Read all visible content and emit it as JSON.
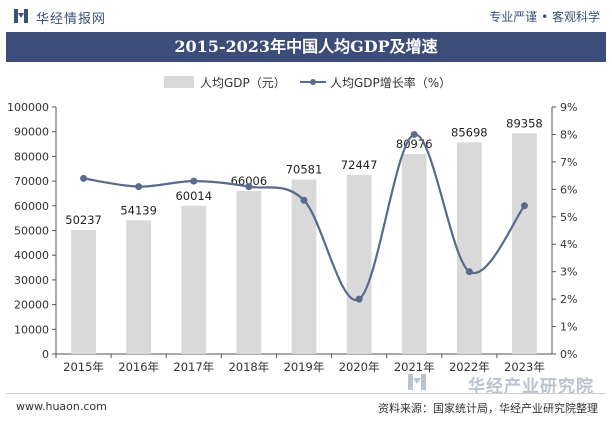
{
  "header": {
    "brand": "华经情报网",
    "tagline": "专业严谨 • 客观科学"
  },
  "chart_data": {
    "type": "bar",
    "title": "2015-2023年中国人均GDP及增速",
    "categories": [
      "2015年",
      "2016年",
      "2017年",
      "2018年",
      "2019年",
      "2020年",
      "2021年",
      "2022年",
      "2023年"
    ],
    "series": [
      {
        "name": "人均GDP（元）",
        "type": "bar",
        "axis": "left",
        "values": [
          50237,
          54139,
          60014,
          66006,
          70581,
          72447,
          80976,
          85698,
          89358
        ],
        "color": "#d9d9d9"
      },
      {
        "name": "人均GDP增长率（%）",
        "type": "line",
        "axis": "right",
        "values": [
          6.4,
          6.1,
          6.3,
          6.1,
          5.6,
          2.0,
          8.0,
          3.0,
          5.4
        ],
        "color": "#5a6a8a"
      }
    ],
    "yleft": {
      "ylim": [
        0,
        100000
      ],
      "ticks": [
        "0",
        "10000",
        "20000",
        "30000",
        "40000",
        "50000",
        "60000",
        "70000",
        "80000",
        "90000",
        "100000"
      ]
    },
    "yright": {
      "ylim": [
        0,
        9
      ],
      "ticks": [
        "0%",
        "1%",
        "2%",
        "3%",
        "4%",
        "5%",
        "6%",
        "7%",
        "8%",
        "9%"
      ]
    },
    "legend_position": "top-center",
    "grid": false
  },
  "watermark": {
    "text": "华经产业研究院"
  },
  "footer": {
    "url": "www.huaon.com",
    "source": "资料来源：国家统计局，华经产业研究院整理"
  }
}
